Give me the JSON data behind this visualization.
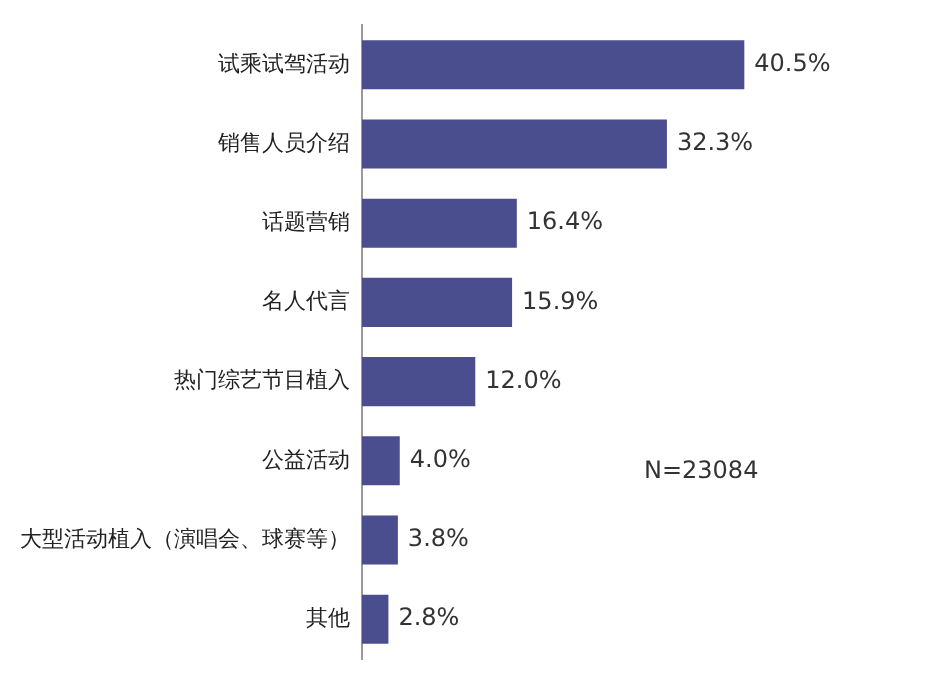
{
  "chart_data": {
    "type": "bar",
    "orientation": "horizontal",
    "categories": [
      "试乘试驾活动",
      "销售人员介绍",
      "话题营销",
      "名人代言",
      "热门综艺节目植入",
      "公益活动",
      "大型活动植入（演唱会、球赛等）",
      "其他"
    ],
    "values": [
      40.5,
      32.3,
      16.4,
      15.9,
      12.0,
      4.0,
      3.8,
      2.8
    ],
    "value_labels": [
      "40.5%",
      "32.3%",
      "16.4%",
      "15.9%",
      "12.0%",
      "4.0%",
      "3.8%",
      "2.8%"
    ],
    "color": "#4a4e8e",
    "grid": false,
    "legend": false,
    "annotations": [
      "N=23084"
    ]
  }
}
